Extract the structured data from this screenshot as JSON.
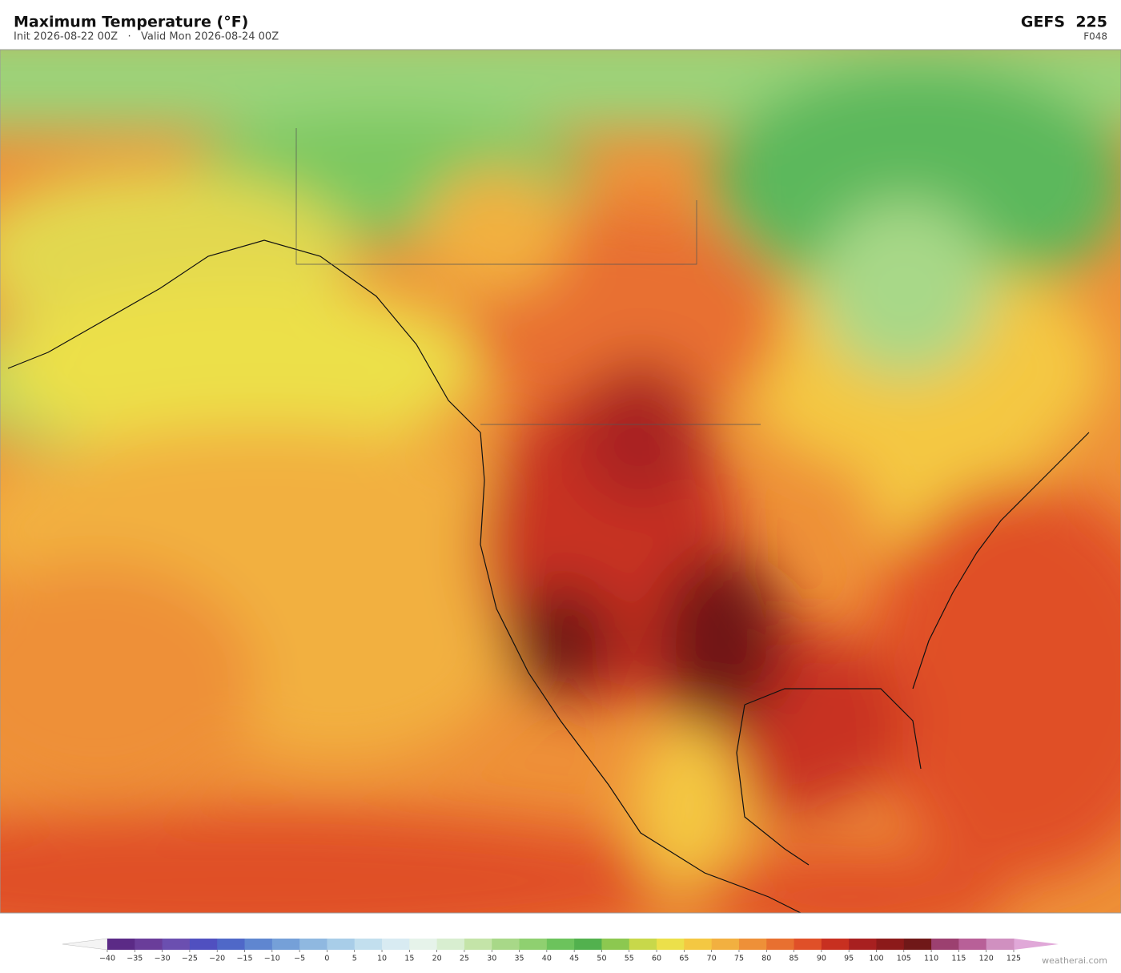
{
  "header": {
    "title": "Maximum Temperature  (°F)",
    "subtitle": "Init 2026-08-22 00Z   ·   Valid Mon 2026-08-24 00Z",
    "model": "GEFS  225",
    "forecast_hour": "F048"
  },
  "colorbar": {
    "ticks": [
      {
        "value": -40,
        "label": "−40"
      },
      {
        "value": -35,
        "label": "−35"
      },
      {
        "value": -30,
        "label": "−30"
      },
      {
        "value": -25,
        "label": "−25"
      },
      {
        "value": -20,
        "label": "−20"
      },
      {
        "value": -15,
        "label": "−15"
      },
      {
        "value": -10,
        "label": "−10"
      },
      {
        "value": -5,
        "label": "−5"
      },
      0,
      5,
      10,
      15,
      20,
      25,
      30,
      35,
      40,
      45,
      50,
      55,
      60,
      65,
      70,
      75,
      80,
      85,
      90,
      95,
      100,
      105,
      110,
      115,
      120,
      125
    ],
    "colors": [
      "#5b2a86",
      "#6a3d9a",
      "#6b4fb0",
      "#5050c0",
      "#4f68c8",
      "#5f86d0",
      "#75a0d8",
      "#8fb8e0",
      "#a8cde8",
      "#c2dfee",
      "#d8ebf2",
      "#e6f3ea",
      "#d8eed0",
      "#c4e4a8",
      "#a8d888",
      "#8fd070",
      "#6cc35c",
      "#52b14e",
      "#8cc850",
      "#c8d84a",
      "#ece04a",
      "#f4c842",
      "#f2b040",
      "#ee9038",
      "#e87030",
      "#e05028",
      "#c83020",
      "#a82020",
      "#8c1a1a",
      "#701818",
      "#9c4070",
      "#b86098",
      "#d090c0"
    ],
    "under_color": "#f4f4f4",
    "over_color": "#e0a8d8"
  },
  "credit": "weatherai.com"
}
